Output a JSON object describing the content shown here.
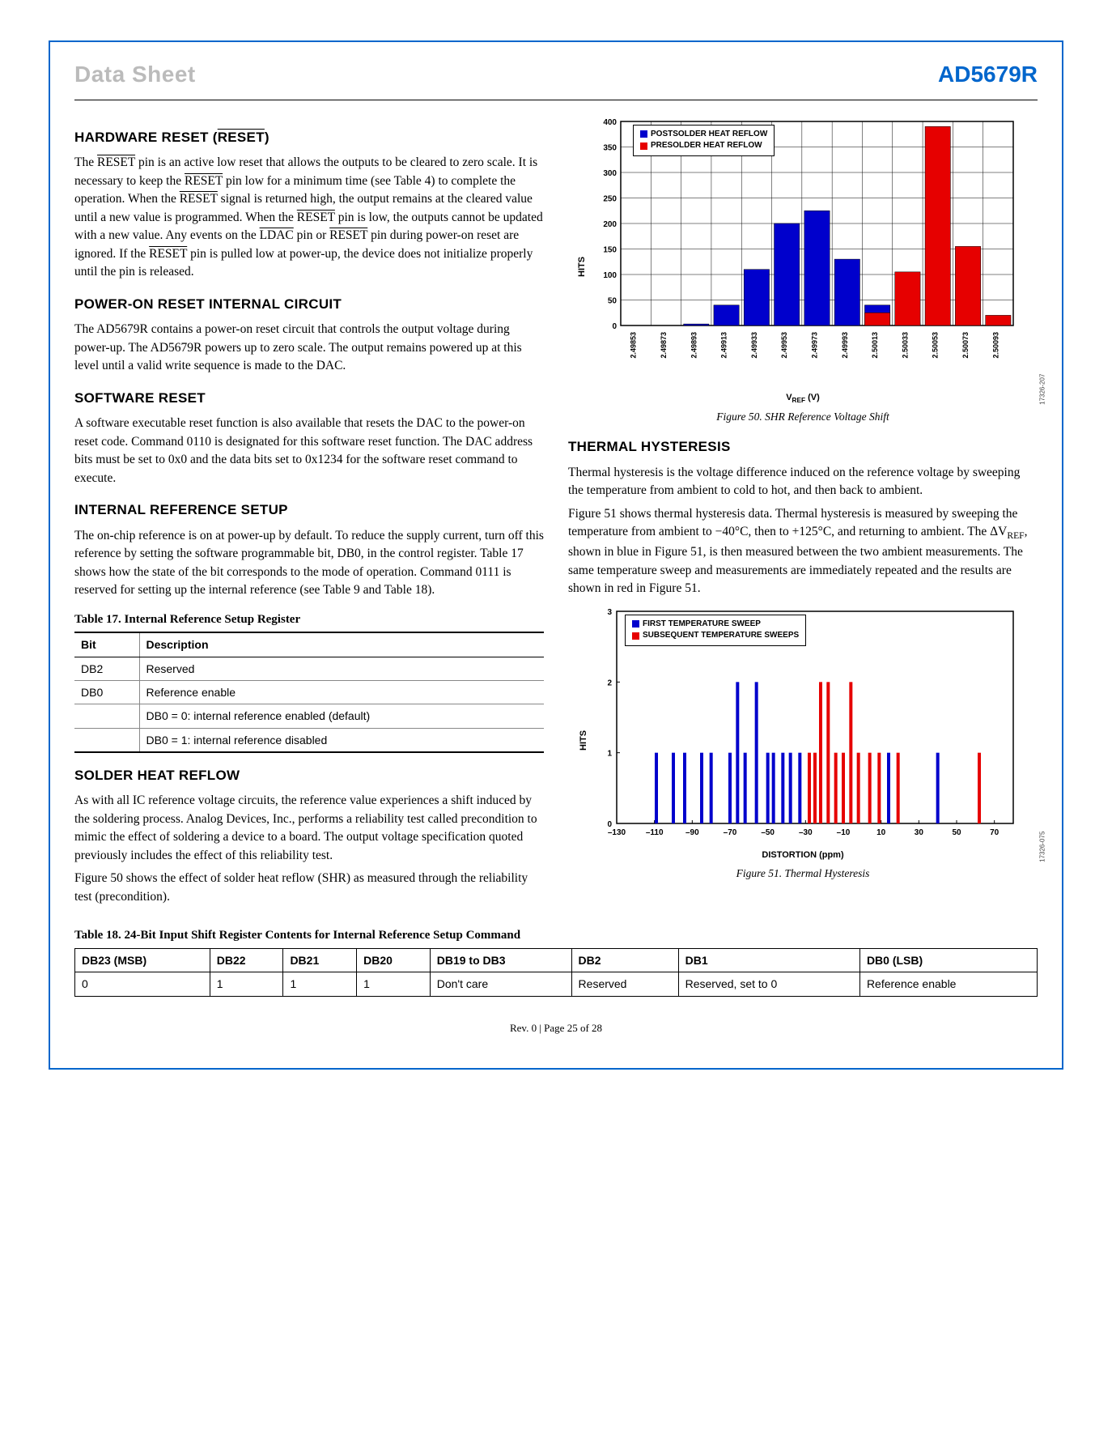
{
  "header": {
    "left": "Data Sheet",
    "right": "AD5679R"
  },
  "sections": {
    "hw_reset_title": "HARDWARE RESET (",
    "hw_reset_title2": "RESET",
    "hw_reset_title3": ")",
    "hw_reset_p": "The RESET pin is an active low reset that allows the outputs to be cleared to zero scale. It is necessary to keep the RESET pin low for a minimum time (see Table 4) to complete the operation. When the RESET signal is returned high, the output remains at the cleared value until a new value is programmed. When the RESET pin is low, the outputs cannot be updated with a new value. Any events on the LDAC pin or RESET pin during power-on reset are ignored. If the RESET pin is pulled low at power-up, the device does not initialize properly until the pin is released.",
    "por_title": "POWER-ON RESET INTERNAL CIRCUIT",
    "por_p": "The AD5679R contains a power-on reset circuit that controls the output voltage during power-up. The AD5679R powers up to zero scale. The output remains powered up at this level until a valid write sequence is made to the DAC.",
    "sw_title": "SOFTWARE RESET",
    "sw_p": "A software executable reset function is also available that resets the DAC to the power-on reset code. Command 0110 is designated for this software reset function. The DAC address bits must be set to 0x0 and the data bits set to 0x1234 for the software reset command to execute.",
    "iref_title": "INTERNAL REFERENCE SETUP",
    "iref_p": "The on-chip reference is on at power-up by default. To reduce the supply current, turn off this reference by setting the software programmable bit, DB0, in the control register. Table 17 shows how the state of the bit corresponds to the mode of operation. Command 0111 is reserved for setting up the internal reference (see Table 9 and Table 18).",
    "shr_title": "SOLDER HEAT REFLOW",
    "shr_p1": "As with all IC reference voltage circuits, the reference value experiences a shift induced by the soldering process. Analog Devices, Inc., performs a reliability test called precondition to mimic the effect of soldering a device to a board. The output voltage specification quoted previously includes the effect of this reliability test.",
    "shr_p2": "Figure 50 shows the effect of solder heat reflow (SHR) as measured through the reliability test (precondition).",
    "th_title": "THERMAL HYSTERESIS",
    "th_p1": "Thermal hysteresis is the voltage difference induced on the reference voltage by sweeping the temperature from ambient to cold to hot, and then back to ambient.",
    "th_p2": "Figure 51 shows thermal hysteresis data. Thermal hysteresis is measured by sweeping the temperature from ambient to −40°C, then to +125°C, and returning to ambient. The ΔVREF, shown in blue in Figure 51, is then measured between the two ambient measurements. The same temperature sweep and measurements are immediately repeated and the results are shown in red in Figure 51."
  },
  "table17": {
    "title": "Table 17. Internal Reference Setup Register",
    "headers": [
      "Bit",
      "Description"
    ],
    "rows": [
      [
        "DB2",
        "Reserved"
      ],
      [
        "DB0",
        "Reference enable"
      ],
      [
        "",
        "DB0 = 0: internal reference enabled (default)"
      ],
      [
        "",
        "DB0 = 1: internal reference disabled"
      ]
    ]
  },
  "table18": {
    "title": "Table 18. 24-Bit Input Shift Register Contents for Internal Reference Setup Command",
    "headers": [
      "DB23 (MSB)",
      "DB22",
      "DB21",
      "DB20",
      "DB19 to DB3",
      "DB2",
      "DB1",
      "DB0 (LSB)"
    ],
    "rows": [
      [
        "0",
        "1",
        "1",
        "1",
        "Don't care",
        "Reserved",
        "Reserved, set to 0",
        "Reference enable"
      ]
    ]
  },
  "fig50": {
    "caption": "Figure 50. SHR Reference Voltage Shift",
    "ylabel": "HITS",
    "xlabel": "VREF (V)",
    "imgid": "17326-207",
    "legend": [
      {
        "label": "POSTSOLDER HEAT REFLOW",
        "color": "#0000cc"
      },
      {
        "label": "PRESOLDER HEAT REFLOW",
        "color": "#e60000"
      }
    ],
    "ylim": [
      0,
      400
    ],
    "ytick": 50,
    "categories": [
      "2.49853",
      "2.49873",
      "2.49893",
      "2.49913",
      "2.49933",
      "2.49953",
      "2.49973",
      "2.49993",
      "2.50013",
      "2.50033",
      "2.50053",
      "2.50073",
      "2.50093"
    ],
    "series": {
      "post": {
        "color": "#0000cc",
        "values": [
          0,
          0,
          3,
          40,
          110,
          200,
          225,
          130,
          40,
          5,
          0,
          0,
          0
        ]
      },
      "pre": {
        "color": "#e60000",
        "values": [
          0,
          0,
          0,
          0,
          0,
          0,
          0,
          0,
          25,
          105,
          390,
          155,
          20
        ]
      }
    }
  },
  "fig51": {
    "caption": "Figure 51. Thermal Hysteresis",
    "ylabel": "HITS",
    "xlabel": "DISTORTION (ppm)",
    "imgid": "17326-075",
    "legend": [
      {
        "label": "FIRST TEMPERATURE SWEEP",
        "color": "#0000cc"
      },
      {
        "label": "SUBSEQUENT TEMPERATURE SWEEPS",
        "color": "#e60000"
      }
    ],
    "ylim": [
      0,
      3
    ],
    "ytick": 1,
    "xlim": [
      -130,
      80
    ],
    "xtick": 20,
    "bars": [
      {
        "x": -109,
        "h": 1,
        "c": "#0000cc"
      },
      {
        "x": -100,
        "h": 1,
        "c": "#0000cc"
      },
      {
        "x": -94,
        "h": 1,
        "c": "#0000cc"
      },
      {
        "x": -85,
        "h": 1,
        "c": "#0000cc"
      },
      {
        "x": -80,
        "h": 1,
        "c": "#0000cc"
      },
      {
        "x": -70,
        "h": 1,
        "c": "#0000cc"
      },
      {
        "x": -66,
        "h": 2,
        "c": "#0000cc"
      },
      {
        "x": -62,
        "h": 1,
        "c": "#0000cc"
      },
      {
        "x": -56,
        "h": 2,
        "c": "#0000cc"
      },
      {
        "x": -50,
        "h": 1,
        "c": "#0000cc"
      },
      {
        "x": -47,
        "h": 1,
        "c": "#0000cc"
      },
      {
        "x": -42,
        "h": 1,
        "c": "#0000cc"
      },
      {
        "x": -38,
        "h": 1,
        "c": "#0000cc"
      },
      {
        "x": -33,
        "h": 1,
        "c": "#0000cc"
      },
      {
        "x": -28,
        "h": 1,
        "c": "#e60000"
      },
      {
        "x": -25,
        "h": 1,
        "c": "#e60000"
      },
      {
        "x": -22,
        "h": 2,
        "c": "#e60000"
      },
      {
        "x": -18,
        "h": 2,
        "c": "#e60000"
      },
      {
        "x": -14,
        "h": 1,
        "c": "#e60000"
      },
      {
        "x": -10,
        "h": 1,
        "c": "#e60000"
      },
      {
        "x": -6,
        "h": 2,
        "c": "#e60000"
      },
      {
        "x": -2,
        "h": 1,
        "c": "#e60000"
      },
      {
        "x": 4,
        "h": 1,
        "c": "#e60000"
      },
      {
        "x": 9,
        "h": 1,
        "c": "#e60000"
      },
      {
        "x": 14,
        "h": 1,
        "c": "#0000cc"
      },
      {
        "x": 19,
        "h": 1,
        "c": "#e60000"
      },
      {
        "x": 40,
        "h": 1,
        "c": "#0000cc"
      },
      {
        "x": 62,
        "h": 1,
        "c": "#e60000"
      }
    ]
  },
  "footer": "Rev. 0 | Page 25 of 28"
}
